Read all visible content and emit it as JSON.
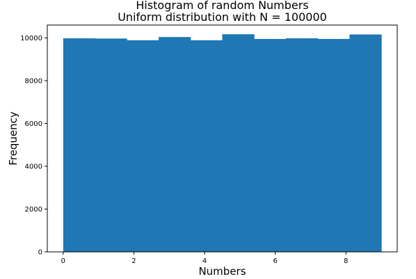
{
  "chart_data": {
    "type": "bar",
    "title": "Histogram of random Numbers",
    "subtitle": "Uniform distribution with N = 100000",
    "xlabel": "Numbers",
    "ylabel": "Frequency",
    "bin_edges": [
      0,
      0.9,
      1.8,
      2.7,
      3.6,
      4.5,
      5.4,
      6.3,
      7.2,
      8.1,
      9.0
    ],
    "values": [
      9980,
      9970,
      9890,
      10040,
      9890,
      10170,
      9950,
      9980,
      9950,
      10160
    ],
    "xlim": [
      -0.45,
      9.45
    ],
    "ylim": [
      0,
      10600
    ],
    "xticks": [
      0,
      2,
      4,
      6,
      8
    ],
    "xtick_labels": [
      "0",
      "2",
      "4",
      "6",
      "8"
    ],
    "yticks": [
      0,
      2000,
      4000,
      6000,
      8000,
      10000
    ],
    "ytick_labels": [
      "0",
      "2000",
      "4000",
      "6000",
      "8000",
      "10000"
    ],
    "bar_color": "#1f77b4",
    "grid": false,
    "legend": "none"
  }
}
